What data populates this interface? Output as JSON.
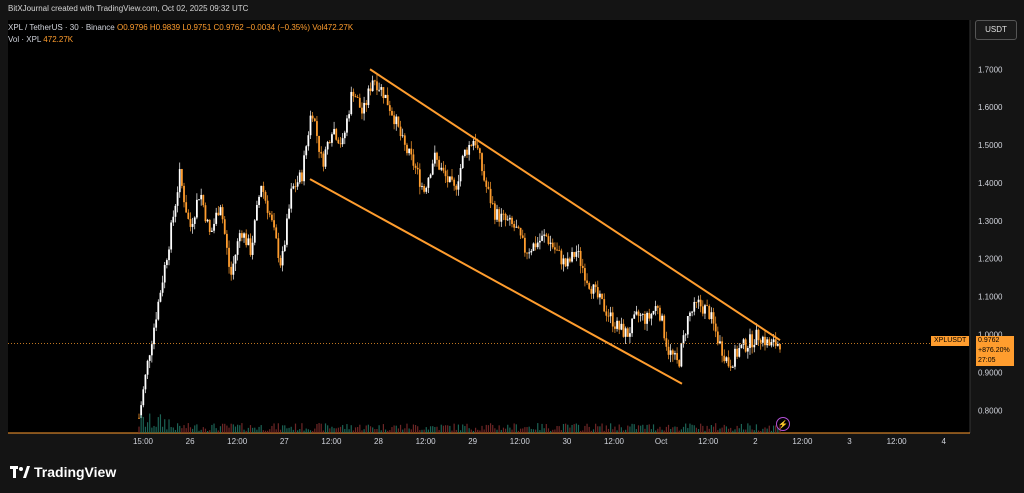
{
  "header": {
    "attribution": "BitXJournal created with TradingView.com, Oct 02, 2025 09:32 UTC"
  },
  "legend": {
    "symbol": "XPL / TetherUS · 30 · Binance",
    "ohlc": "O0.9796  H0.9839  L0.9751  C0.9762  −0.0034 (−0.35%)  Vol472.27K",
    "vol_label": "Vol · XPL",
    "vol_value": "472.27K"
  },
  "currency_button": "USDT",
  "last_price": {
    "symbol": "XPLUSDT",
    "price": "0.9762",
    "change": "+876.20%",
    "countdown": "27:05"
  },
  "branding": "TradingView",
  "colors": {
    "up": "#ffffff",
    "down": "#ff9d2e",
    "channel": "#ff9d2e",
    "background": "#000000"
  },
  "chart_data": {
    "type": "candlestick",
    "y_axis": {
      "ticks": [
        "1.7000",
        "1.6000",
        "1.5000",
        "1.4000",
        "1.3000",
        "1.2000",
        "1.1000",
        "1.0000",
        "0.9000",
        "0.8000"
      ],
      "range": [
        0.74,
        1.83
      ]
    },
    "x_axis": {
      "ticks": [
        "15:00",
        "26",
        "12:00",
        "27",
        "12:00",
        "28",
        "12:00",
        "29",
        "12:00",
        "30",
        "12:00",
        "Oct",
        "12:00",
        "2",
        "12:00",
        "3",
        "12:00",
        "4"
      ]
    },
    "last_price": 0.9762,
    "close_path": [
      [
        0,
        0.78
      ],
      [
        2,
        0.95
      ],
      [
        4,
        1.1
      ],
      [
        6,
        1.25
      ],
      [
        8,
        1.42
      ],
      [
        10,
        1.28
      ],
      [
        12,
        1.38
      ],
      [
        14,
        1.26
      ],
      [
        16,
        1.35
      ],
      [
        18,
        1.15
      ],
      [
        20,
        1.28
      ],
      [
        22,
        1.22
      ],
      [
        24,
        1.4
      ],
      [
        26,
        1.3
      ],
      [
        28,
        1.18
      ],
      [
        30,
        1.38
      ],
      [
        32,
        1.42
      ],
      [
        34,
        1.6
      ],
      [
        36,
        1.45
      ],
      [
        38,
        1.55
      ],
      [
        40,
        1.5
      ],
      [
        42,
        1.65
      ],
      [
        44,
        1.58
      ],
      [
        46,
        1.68
      ],
      [
        48,
        1.64
      ],
      [
        50,
        1.58
      ],
      [
        52,
        1.5
      ],
      [
        54,
        1.45
      ],
      [
        56,
        1.38
      ],
      [
        58,
        1.47
      ],
      [
        60,
        1.42
      ],
      [
        62,
        1.38
      ],
      [
        64,
        1.48
      ],
      [
        66,
        1.52
      ],
      [
        68,
        1.4
      ],
      [
        70,
        1.32
      ],
      [
        72,
        1.3
      ],
      [
        74,
        1.28
      ],
      [
        76,
        1.22
      ],
      [
        78,
        1.24
      ],
      [
        80,
        1.26
      ],
      [
        82,
        1.22
      ],
      [
        84,
        1.18
      ],
      [
        86,
        1.22
      ],
      [
        88,
        1.15
      ],
      [
        90,
        1.1
      ],
      [
        92,
        1.06
      ],
      [
        94,
        1.02
      ],
      [
        96,
        1.0
      ],
      [
        98,
        1.05
      ],
      [
        100,
        1.04
      ],
      [
        102,
        1.08
      ],
      [
        104,
        0.96
      ],
      [
        106,
        0.92
      ],
      [
        108,
        1.05
      ],
      [
        110,
        1.08
      ],
      [
        112,
        1.06
      ],
      [
        114,
        0.98
      ],
      [
        116,
        0.92
      ],
      [
        118,
        0.96
      ],
      [
        120,
        0.98
      ],
      [
        122,
        1.0
      ],
      [
        124,
        0.97
      ],
      [
        126,
        0.98
      ]
    ],
    "channel": {
      "upper": [
        [
          1.7,
          0.372
        ],
        [
          0.985,
          0.762
        ]
      ],
      "lower": [
        [
          1.41,
          0.31
        ],
        [
          0.87,
          0.682
        ]
      ]
    }
  }
}
